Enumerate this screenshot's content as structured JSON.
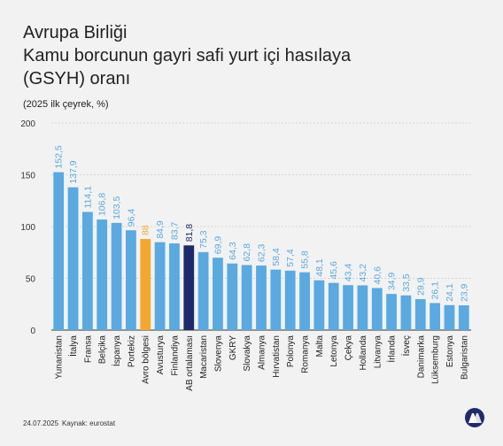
{
  "header": {
    "title_line1": "Avrupa Birliği",
    "title_line2": "Kamu borcunun gayri safi yurt içi hasılaya",
    "title_line3": "(GSYH) oranı",
    "subtitle": "(2025 ilk çeyrek, %)"
  },
  "footer": {
    "date": "24.07.2025",
    "source": "Kaynak: eurostat"
  },
  "colors": {
    "bar_default": "#5aa9e0",
    "bar_euro_area": "#f2a830",
    "bar_eu_average": "#1f2a6b",
    "label_default": "#5aa9e0",
    "grid": "#cccccc",
    "axis": "#333333"
  },
  "chart_data": {
    "type": "bar",
    "ylim": [
      0,
      200
    ],
    "yticks": [
      0,
      50,
      100,
      150,
      200
    ],
    "grid": true,
    "categories": [
      "Yunanistan",
      "İtalya",
      "Fransa",
      "Belçika",
      "İspanya",
      "Portekiz",
      "Avro bölgesi",
      "Avusturya",
      "Finlandiya",
      "AB ortalaması",
      "Macaristan",
      "Slovenya",
      "GKRY",
      "Slovakya",
      "Almanya",
      "Hırvatistan",
      "Polonya",
      "Romanya",
      "Malta",
      "Letonya",
      "Çekya",
      "Hollanda",
      "Litvanya",
      "İrlanda",
      "İsveç",
      "Danimarka",
      "Lüksemburg",
      "Estonya",
      "Bulgaristan"
    ],
    "values": [
      152.5,
      137.9,
      114.1,
      106.8,
      103.5,
      96.4,
      88,
      84.9,
      83.7,
      81.8,
      75.3,
      69.9,
      64.3,
      62.8,
      62.3,
      58.4,
      57.4,
      55.8,
      48.1,
      45.6,
      43.4,
      43.2,
      40.6,
      34.9,
      33.5,
      29.9,
      26.1,
      24.1,
      23.9
    ],
    "value_labels": [
      "152,5",
      "137,9",
      "114,1",
      "106,8",
      "103,5",
      "96,4",
      "88",
      "84,9",
      "83,7",
      "81,8",
      "75,3",
      "69,9",
      "64,3",
      "62,8",
      "62,3",
      "58,4",
      "57,4",
      "55,8",
      "48,1",
      "45,6",
      "43,4",
      "43,2",
      "40,6",
      "34,9",
      "33,5",
      "29,9",
      "26,1",
      "24,1",
      "23,9"
    ],
    "highlight": {
      "Avro bölgesi": "euro_area",
      "AB ortalaması": "eu_average"
    }
  }
}
